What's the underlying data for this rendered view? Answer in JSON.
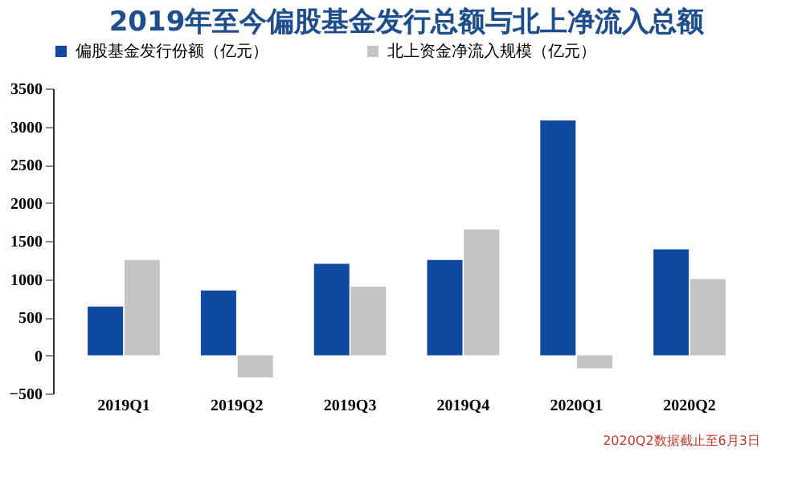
{
  "chart_data": {
    "type": "bar",
    "title": "2019年至今偏股基金发行总额与北上净流入总额",
    "categories": [
      "2019Q1",
      "2019Q2",
      "2019Q3",
      "2019Q4",
      "2020Q1",
      "2020Q2"
    ],
    "series": [
      {
        "name": "偏股基金发行份额（亿元）",
        "color": "#1148a0",
        "values": [
          640,
          850,
          1200,
          1250,
          3080,
          1390
        ]
      },
      {
        "name": "北上资金净流入规模（亿元）",
        "color": "#c4c4c4",
        "values": [
          1250,
          -290,
          900,
          1650,
          -170,
          1000
        ]
      }
    ],
    "ylim": [
      -500,
      3500
    ],
    "yticks": [
      -500,
      0,
      500,
      1000,
      1500,
      2000,
      2500,
      3000,
      3500
    ],
    "grid": false,
    "legend": "top",
    "annotations": [
      "2020Q2数据截止至6月3日"
    ]
  }
}
